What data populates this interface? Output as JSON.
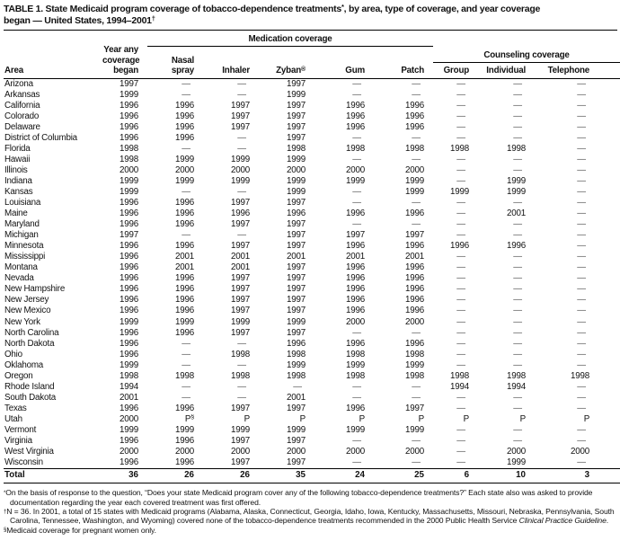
{
  "title_lines": [
    "TABLE 1. State Medicaid program coverage of tobacco-dependence treatments^*^, by area, type of coverage, and year coverage",
    "began — United States, 1994–2001^†^"
  ],
  "table": {
    "group_headers": {
      "medication": "Medication coverage",
      "counseling": "Counseling coverage"
    },
    "column_headers": {
      "area": "Area",
      "year_began": "Year any\ncoverage\nbegan",
      "nasal_spray": "Nasal\nspray",
      "inhaler": "Inhaler",
      "zyban": "Zyban^®^",
      "gum": "Gum",
      "patch": "Patch",
      "group": "Group",
      "individual": "Individual",
      "telephone": "Telephone"
    },
    "rows": [
      [
        "Arizona",
        "1997",
        "—",
        "—",
        "1997",
        "—",
        "—",
        "—",
        "—",
        "—"
      ],
      [
        "Arkansas",
        "1999",
        "—",
        "—",
        "1999",
        "—",
        "—",
        "—",
        "—",
        "—"
      ],
      [
        "California",
        "1996",
        "1996",
        "1997",
        "1997",
        "1996",
        "1996",
        "—",
        "—",
        "—"
      ],
      [
        "Colorado",
        "1996",
        "1996",
        "1997",
        "1997",
        "1996",
        "1996",
        "—",
        "—",
        "—"
      ],
      [
        "Delaware",
        "1996",
        "1996",
        "1997",
        "1997",
        "1996",
        "1996",
        "—",
        "—",
        "—"
      ],
      [
        "District of Columbia",
        "1996",
        "1996",
        "—",
        "1997",
        "—",
        "—",
        "—",
        "—",
        "—"
      ],
      [
        "Florida",
        "1998",
        "—",
        "—",
        "1998",
        "1998",
        "1998",
        "1998",
        "1998",
        "—"
      ],
      [
        "Hawaii",
        "1998",
        "1999",
        "1999",
        "1999",
        "—",
        "—",
        "—",
        "—",
        "—"
      ],
      [
        "Illinois",
        "2000",
        "2000",
        "2000",
        "2000",
        "2000",
        "2000",
        "—",
        "—",
        "—"
      ],
      [
        "Indiana",
        "1999",
        "1999",
        "1999",
        "1999",
        "1999",
        "1999",
        "—",
        "1999",
        "—"
      ],
      [
        "Kansas",
        "1999",
        "—",
        "—",
        "1999",
        "—",
        "1999",
        "1999",
        "1999",
        "—"
      ],
      [
        "Louisiana",
        "1996",
        "1996",
        "1997",
        "1997",
        "—",
        "—",
        "—",
        "—",
        "—"
      ],
      [
        "Maine",
        "1996",
        "1996",
        "1996",
        "1996",
        "1996",
        "1996",
        "—",
        "2001",
        "—"
      ],
      [
        "Maryland",
        "1996",
        "1996",
        "1997",
        "1997",
        "—",
        "—",
        "—",
        "—",
        "—"
      ],
      [
        "Michigan",
        "1997",
        "—",
        "—",
        "1997",
        "1997",
        "1997",
        "—",
        "—",
        "—"
      ],
      [
        "Minnesota",
        "1996",
        "1996",
        "1997",
        "1997",
        "1996",
        "1996",
        "1996",
        "1996",
        "—"
      ],
      [
        "Mississippi",
        "1996",
        "2001",
        "2001",
        "2001",
        "2001",
        "2001",
        "—",
        "—",
        "—"
      ],
      [
        "Montana",
        "1996",
        "2001",
        "2001",
        "1997",
        "1996",
        "1996",
        "—",
        "—",
        "—"
      ],
      [
        "Nevada",
        "1996",
        "1996",
        "1997",
        "1997",
        "1996",
        "1996",
        "—",
        "—",
        "—"
      ],
      [
        "New Hampshire",
        "1996",
        "1996",
        "1997",
        "1997",
        "1996",
        "1996",
        "—",
        "—",
        "—"
      ],
      [
        "New Jersey",
        "1996",
        "1996",
        "1997",
        "1997",
        "1996",
        "1996",
        "—",
        "—",
        "—"
      ],
      [
        "New Mexico",
        "1996",
        "1996",
        "1997",
        "1997",
        "1996",
        "1996",
        "—",
        "—",
        "—"
      ],
      [
        "New York",
        "1999",
        "1999",
        "1999",
        "1999",
        "2000",
        "2000",
        "—",
        "—",
        "—"
      ],
      [
        "North Carolina",
        "1996",
        "1996",
        "1997",
        "1997",
        "—",
        "—",
        "—",
        "—",
        "—"
      ],
      [
        "North Dakota",
        "1996",
        "—",
        "—",
        "1996",
        "1996",
        "1996",
        "—",
        "—",
        "—"
      ],
      [
        "Ohio",
        "1996",
        "—",
        "1998",
        "1998",
        "1998",
        "1998",
        "—",
        "—",
        "—"
      ],
      [
        "Oklahoma",
        "1999",
        "—",
        "—",
        "1999",
        "1999",
        "1999",
        "—",
        "—",
        "—"
      ],
      [
        "Oregon",
        "1998",
        "1998",
        "1998",
        "1998",
        "1998",
        "1998",
        "1998",
        "1998",
        "1998"
      ],
      [
        "Rhode Island",
        "1994",
        "—",
        "—",
        "—",
        "—",
        "—",
        "1994",
        "1994",
        "—"
      ],
      [
        "South Dakota",
        "2001",
        "—",
        "—",
        "2001",
        "—",
        "—",
        "—",
        "—",
        "—"
      ],
      [
        "Texas",
        "1996",
        "1996",
        "1997",
        "1997",
        "1996",
        "1997",
        "—",
        "—",
        "—"
      ],
      [
        "Utah",
        "2000",
        "P^§^",
        "P",
        "P",
        "P",
        "P",
        "P",
        "P",
        "P"
      ],
      [
        "Vermont",
        "1999",
        "1999",
        "1999",
        "1999",
        "1999",
        "1999",
        "—",
        "—",
        "—"
      ],
      [
        "Virginia",
        "1996",
        "1996",
        "1997",
        "1997",
        "—",
        "—",
        "—",
        "—",
        "—"
      ],
      [
        "West Virginia",
        "2000",
        "2000",
        "2000",
        "2000",
        "2000",
        "2000",
        "—",
        "2000",
        "2000"
      ],
      [
        "Wisconsin",
        "1996",
        "1996",
        "1997",
        "1997",
        "—",
        "—",
        "—",
        "1999",
        "—"
      ]
    ],
    "total_row": [
      "Total",
      "36",
      "26",
      "26",
      "35",
      "24",
      "25",
      "6",
      "10",
      "3"
    ]
  },
  "footnotes": [
    {
      "marker": "*",
      "text": "On the basis of response to the question, “Does your state Medicaid program cover any of the following tobacco-dependence treatments?” Each state also was asked to provide documentation regarding the year each covered treatment was first offered."
    },
    {
      "marker": "†",
      "text": "N = 36. In 2001, a total of 15 states with Medicaid programs (Alabama, Alaska, Connecticut, Georgia, Idaho, Iowa, Kentucky, Massachusetts, Missouri, Nebraska, Pennsylvania, South Carolina, Tennessee, Washington, and Wyoming) covered none of the tobacco-dependence treatments recommended in the 2000 Public Health Service ~Clinical Practice Guideline~."
    },
    {
      "marker": "§",
      "text": "Medicaid coverage for pregnant women only."
    }
  ]
}
